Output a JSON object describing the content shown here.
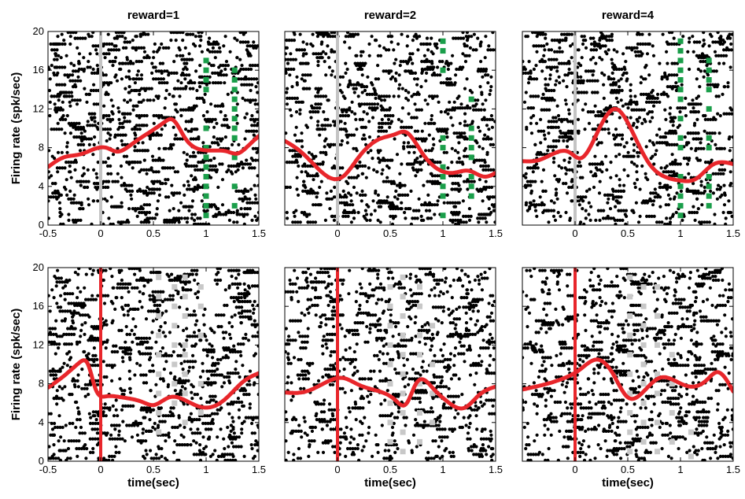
{
  "chart_data": {
    "type": "scatter",
    "ylabel": "Firing rate (spk/sec)",
    "xlabel": "time(sec)",
    "xlim": [
      -0.5,
      1.5
    ],
    "ylim": [
      0,
      20
    ],
    "xticks": [
      "-0.5",
      "0",
      "0.5",
      "1",
      "1.5"
    ],
    "xticks_short": [
      "0",
      "0.5",
      "1",
      "1.5"
    ],
    "yticks": [
      "0",
      "4",
      "8",
      "12",
      "16",
      "20"
    ],
    "colors": {
      "spike": "#000000",
      "rate_curve": "#e8262b",
      "event_green": "#1a9e4a",
      "event_gray": "#c8c8c8",
      "alignment_gray": "#c4c4c4",
      "alignment_red": "#e8262b"
    },
    "panels": [
      {
        "row": 0,
        "col": 0,
        "title": "reward=1",
        "align_color": "alignment_gray",
        "curve_x": [
          -0.5,
          -0.35,
          -0.2,
          -0.05,
          0.05,
          0.15,
          0.3,
          0.45,
          0.6,
          0.68,
          0.8,
          0.95,
          1.05,
          1.2,
          1.3,
          1.4,
          1.5
        ],
        "curve_y": [
          6.0,
          7.0,
          7.3,
          7.9,
          8.0,
          7.6,
          8.4,
          9.5,
          10.6,
          10.9,
          9.0,
          7.8,
          7.7,
          7.6,
          7.4,
          8.2,
          9.2
        ],
        "events": [
          {
            "color": "event_green",
            "x": 1.0,
            "y": [
              1,
              2,
              3,
              4,
              5,
              6,
              7,
              8,
              10,
              14,
              15,
              16,
              17
            ]
          },
          {
            "color": "event_green",
            "x": 1.27,
            "y": [
              2,
              4,
              7,
              9,
              10,
              11,
              12,
              13,
              14,
              15,
              16
            ]
          }
        ]
      },
      {
        "row": 0,
        "col": 1,
        "title": "reward=2",
        "align_color": "alignment_gray",
        "curve_x": [
          -0.5,
          -0.35,
          -0.2,
          -0.05,
          0.05,
          0.2,
          0.4,
          0.55,
          0.65,
          0.8,
          0.95,
          1.1,
          1.25,
          1.4,
          1.5
        ],
        "curve_y": [
          8.7,
          7.6,
          6.0,
          4.8,
          5.0,
          7.0,
          8.9,
          9.4,
          9.6,
          7.5,
          5.8,
          5.4,
          5.6,
          5.0,
          5.4
        ],
        "events": [
          {
            "color": "event_green",
            "x": 1.0,
            "y": [
              1,
              3,
              4,
              5,
              6,
              8,
              9,
              16,
              18,
              19
            ]
          },
          {
            "color": "event_green",
            "x": 1.27,
            "y": [
              3,
              4,
              5,
              7,
              8,
              9,
              10,
              13
            ]
          }
        ]
      },
      {
        "row": 0,
        "col": 2,
        "title": "reward=4",
        "align_color": "alignment_gray",
        "curve_x": [
          -0.5,
          -0.35,
          -0.2,
          -0.05,
          0.05,
          0.2,
          0.38,
          0.55,
          0.7,
          0.85,
          1.0,
          1.15,
          1.3,
          1.5
        ],
        "curve_y": [
          6.6,
          6.7,
          7.4,
          7.5,
          6.9,
          9.3,
          12.0,
          9.5,
          6.4,
          5.0,
          4.6,
          4.8,
          6.2,
          6.3
        ],
        "events": [
          {
            "color": "event_green",
            "x": 1.0,
            "y": [
              1,
              2,
              3,
              4,
              5,
              8,
              9,
              11,
              13,
              14,
              15,
              16,
              17,
              18,
              19
            ]
          },
          {
            "color": "event_green",
            "x": 1.27,
            "y": [
              2,
              3,
              4,
              5,
              8,
              9,
              12,
              14,
              15,
              16,
              17
            ]
          }
        ]
      },
      {
        "row": 1,
        "col": 0,
        "title": "",
        "align_color": "alignment_red",
        "curve_x": [
          -0.5,
          -0.35,
          -0.2,
          -0.12,
          -0.05,
          0.05,
          0.2,
          0.4,
          0.5,
          0.65,
          0.8,
          0.95,
          1.05,
          1.2,
          1.35,
          1.5
        ],
        "curve_y": [
          7.6,
          8.8,
          10.2,
          10.0,
          7.5,
          6.7,
          6.6,
          6.1,
          5.8,
          6.6,
          6.3,
          5.6,
          5.6,
          6.6,
          8.2,
          9.1
        ],
        "events": [
          {
            "color": "event_gray",
            "x": 0.55,
            "y": [
              3,
              5,
              7,
              9,
              11,
              13,
              15,
              17,
              19
            ]
          },
          {
            "color": "event_gray",
            "x": 0.7,
            "y": [
              6,
              8,
              10,
              12,
              14,
              16,
              18
            ]
          },
          {
            "color": "event_gray",
            "x": 0.8,
            "y": [
              4,
              7,
              9,
              11,
              12,
              15,
              17,
              19
            ]
          },
          {
            "color": "event_gray",
            "x": 0.95,
            "y": [
              5,
              8,
              13,
              16,
              18
            ]
          }
        ]
      },
      {
        "row": 1,
        "col": 1,
        "title": "",
        "align_color": "alignment_red",
        "curve_x": [
          -0.5,
          -0.3,
          -0.1,
          0.05,
          0.2,
          0.4,
          0.55,
          0.65,
          0.75,
          0.9,
          1.05,
          1.2,
          1.35,
          1.5
        ],
        "curve_y": [
          7.1,
          7.2,
          8.2,
          8.6,
          7.9,
          7.2,
          6.3,
          5.9,
          8.1,
          7.6,
          6.1,
          5.5,
          6.9,
          7.7
        ],
        "events": [
          {
            "color": "event_gray",
            "x": 0.5,
            "y": [
              2,
              4,
              6,
              8,
              10,
              12,
              14,
              16,
              18
            ]
          },
          {
            "color": "event_gray",
            "x": 0.62,
            "y": [
              1,
              3,
              5,
              7,
              9,
              11,
              13,
              15,
              17,
              19
            ]
          },
          {
            "color": "event_gray",
            "x": 0.78,
            "y": [
              2,
              5,
              8,
              11,
              13,
              16,
              18
            ]
          },
          {
            "color": "event_gray",
            "x": 0.9,
            "y": [
              4,
              7,
              10,
              14
            ]
          }
        ]
      },
      {
        "row": 1,
        "col": 2,
        "title": "",
        "align_color": "alignment_red",
        "curve_x": [
          -0.5,
          -0.3,
          -0.1,
          0.05,
          0.2,
          0.35,
          0.5,
          0.65,
          0.8,
          0.95,
          1.1,
          1.25,
          1.35,
          1.5
        ],
        "curve_y": [
          7.4,
          7.9,
          8.6,
          9.5,
          10.5,
          9.2,
          6.6,
          7.2,
          8.6,
          8.3,
          7.7,
          8.4,
          9.2,
          7.2
        ],
        "events": [
          {
            "color": "event_gray",
            "x": 0.52,
            "y": [
              1,
              3,
              5,
              7,
              9,
              11,
              13,
              15,
              17,
              19
            ]
          },
          {
            "color": "event_gray",
            "x": 0.65,
            "y": [
              2,
              4,
              6,
              8,
              10,
              12,
              14,
              16,
              18
            ]
          },
          {
            "color": "event_gray",
            "x": 0.78,
            "y": [
              1,
              4,
              7,
              9,
              12,
              15,
              18
            ]
          },
          {
            "color": "event_gray",
            "x": 0.92,
            "y": [
              2,
              5,
              8,
              11
            ]
          },
          {
            "color": "event_gray",
            "x": 1.1,
            "y": [
              0.5,
              3
            ]
          }
        ]
      }
    ]
  }
}
